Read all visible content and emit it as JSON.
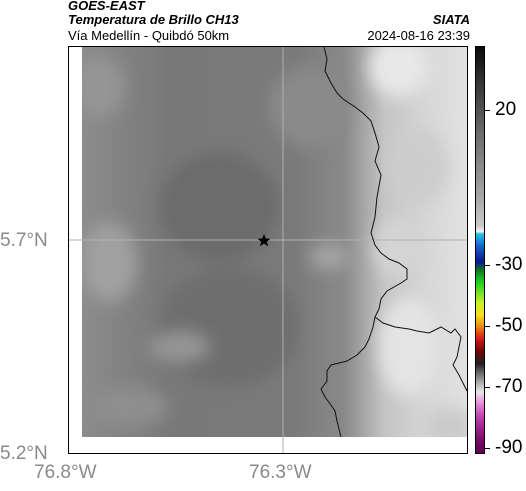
{
  "header": {
    "satellite": "GOES-EAST",
    "product": "Temperatura de Brillo CH13",
    "route": "Vía Medellín - Quibdó 50km",
    "org": "SIATA",
    "timestamp": "2024-08-16 23:39"
  },
  "axes": {
    "y_ticks": [
      "5.7°N",
      "5.2°N"
    ],
    "x_ticks": [
      "76.8°W",
      "76.3°W"
    ]
  },
  "colorbar": {
    "labels": [
      "20",
      "-30",
      "-50",
      "-70",
      "-90"
    ]
  },
  "marker": {
    "icon": "star-icon"
  }
}
